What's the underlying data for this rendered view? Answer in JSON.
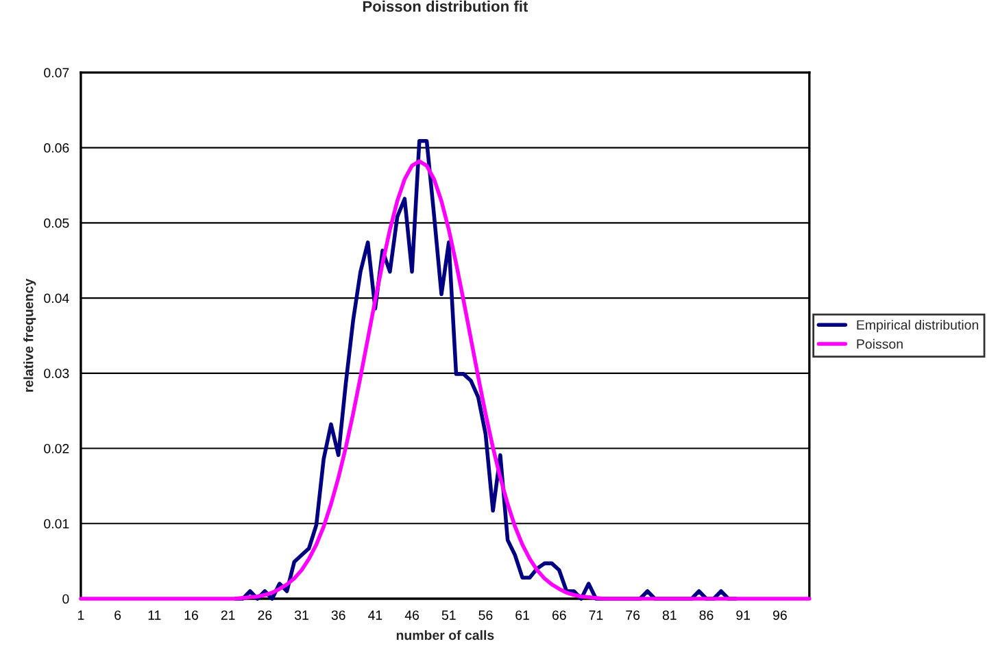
{
  "chart_data": {
    "type": "line",
    "title": "Poisson distribution fit",
    "xlabel": "number of calls",
    "ylabel": "relative frequency",
    "categories": [
      "1",
      null,
      null,
      null,
      null,
      "6",
      null,
      null,
      null,
      null,
      "11",
      null,
      null,
      null,
      null,
      "16",
      null,
      null,
      null,
      null,
      "21",
      null,
      null,
      null,
      null,
      "26",
      null,
      null,
      null,
      null,
      "31",
      null,
      null,
      null,
      null,
      "36",
      null,
      null,
      null,
      null,
      "41",
      null,
      null,
      null,
      null,
      "46",
      null,
      null,
      null,
      null,
      "51",
      null,
      null,
      null,
      null,
      "56",
      null,
      null,
      null,
      null,
      "61",
      null,
      null,
      null,
      null,
      "66",
      null,
      null,
      null,
      null,
      "71",
      null,
      null,
      null,
      null,
      "76",
      null,
      null,
      null,
      null,
      "81",
      null,
      null,
      null,
      null,
      "86",
      null,
      null,
      null,
      null,
      "91",
      null,
      null,
      null,
      null,
      "96",
      null,
      null,
      null,
      null
    ],
    "series": [
      {
        "name": "Empirical distribution",
        "color": "#000080",
        "values": [
          null,
          null,
          null,
          null,
          null,
          null,
          null,
          null,
          null,
          null,
          null,
          null,
          null,
          null,
          null,
          null,
          null,
          null,
          null,
          null,
          null,
          0,
          0,
          0.001,
          0,
          0.001,
          0,
          0.002,
          0.001,
          0.0049,
          0.0058,
          0.0067,
          0.0098,
          0.0186,
          0.0232,
          0.0191,
          0.0286,
          0.037,
          0.0435,
          0.0474,
          0.0386,
          0.0463,
          0.0435,
          0.0508,
          0.0532,
          0.0435,
          0.0609,
          0.0609,
          0.051,
          0.0405,
          0.0474,
          0.0299,
          0.0299,
          0.029,
          0.0268,
          0.0219,
          0.0117,
          0.0191,
          0.0078,
          0.0058,
          0.0028,
          0.0028,
          0.004,
          0.0047,
          0.0047,
          0.0038,
          0.001,
          0.001,
          0,
          0.002,
          0,
          0,
          0,
          0,
          0,
          0,
          0,
          0.001,
          0,
          0,
          0,
          0,
          0,
          0,
          0.001,
          0,
          0,
          0.001,
          0,
          0,
          null,
          null,
          null,
          null,
          null,
          null,
          null,
          null,
          null,
          null
        ]
      },
      {
        "name": "Poisson",
        "color": "#ff00ff",
        "values": [
          0,
          0,
          0,
          0,
          0,
          0,
          0,
          0,
          0,
          0,
          0,
          0,
          0,
          0,
          0,
          0,
          0,
          0,
          0,
          0,
          0,
          0,
          0.0001,
          0.0002,
          0.0003,
          0.0005,
          0.0008,
          0.0013,
          0.0019,
          0.0027,
          0.0038,
          0.0053,
          0.0072,
          0.0096,
          0.0126,
          0.0161,
          0.0201,
          0.0246,
          0.0295,
          0.0346,
          0.0397,
          0.0446,
          0.0491,
          0.0529,
          0.0558,
          0.0576,
          0.0582,
          0.0576,
          0.0558,
          0.0529,
          0.0491,
          0.0446,
          0.0397,
          0.0346,
          0.0295,
          0.0246,
          0.0201,
          0.0161,
          0.0126,
          0.0096,
          0.0072,
          0.0053,
          0.0038,
          0.0027,
          0.0019,
          0.0013,
          0.0008,
          0.0005,
          0.0003,
          0.0002,
          0.0001,
          0,
          0,
          0,
          0,
          0,
          0,
          0,
          0,
          0,
          0,
          0,
          0,
          0,
          0,
          0,
          0,
          0,
          0,
          0,
          0,
          0,
          0,
          0,
          0,
          0,
          0,
          0,
          0,
          0
        ]
      }
    ],
    "ylim": [
      0,
      0.07
    ],
    "yticks": [
      0,
      0.01,
      0.02,
      0.03,
      0.04,
      0.05,
      0.06,
      0.07
    ],
    "grid": "y",
    "legend": "right",
    "marker": "none",
    "line_style": "solid"
  }
}
